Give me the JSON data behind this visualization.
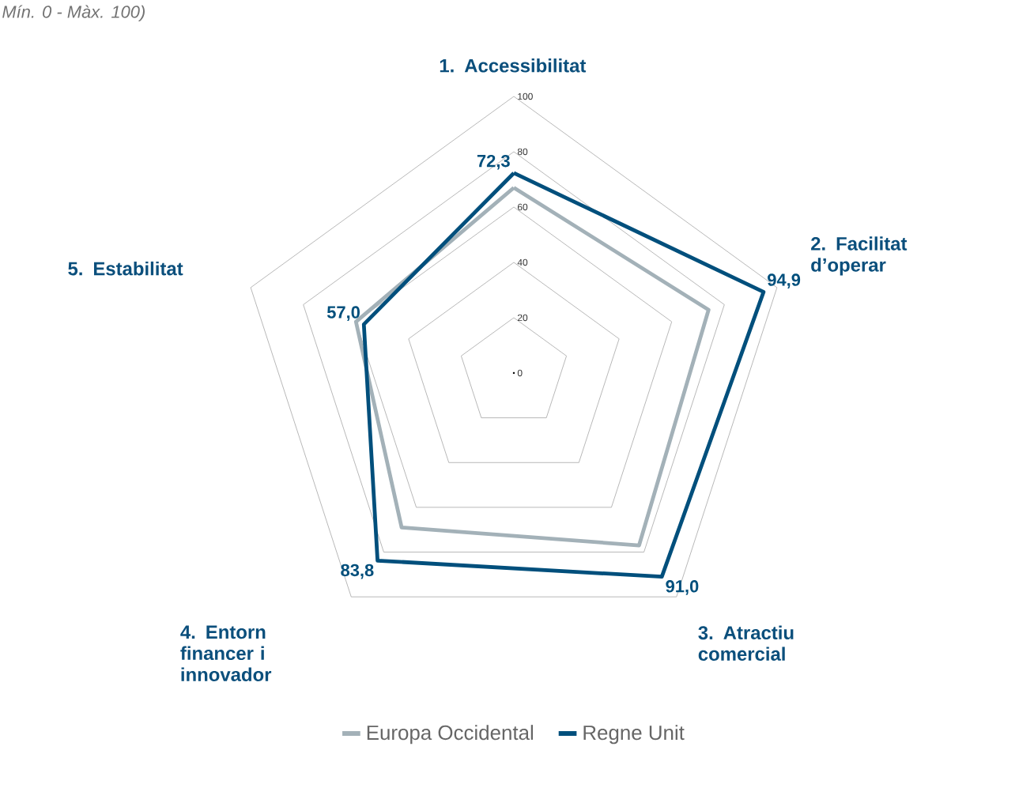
{
  "chart_data": {
    "type": "radar",
    "categories": [
      "1. Accessibilitat",
      "2. Facilitat d’operar",
      "3. Atractiu comercial",
      "4. Entorn financer i innovador",
      "5. Estabilitat"
    ],
    "series": [
      {
        "name": "Europa Occidental",
        "color": "#a3b1b8",
        "values": [
          67,
          74,
          77,
          69,
          60
        ]
      },
      {
        "name": "Regne Unit",
        "color": "#004f7c",
        "values": [
          72.3,
          94.9,
          91.0,
          83.8,
          57.0
        ],
        "value_labels": [
          "72,3",
          "94,9",
          "91,0",
          "83,8",
          "57,0"
        ]
      }
    ],
    "ylim": [
      0,
      100
    ],
    "yticks": [
      0,
      20,
      40,
      60,
      80,
      100
    ],
    "grid": true,
    "legend": "bottom",
    "annotations": [
      "Mín. 0 - Màx. 100)"
    ]
  }
}
